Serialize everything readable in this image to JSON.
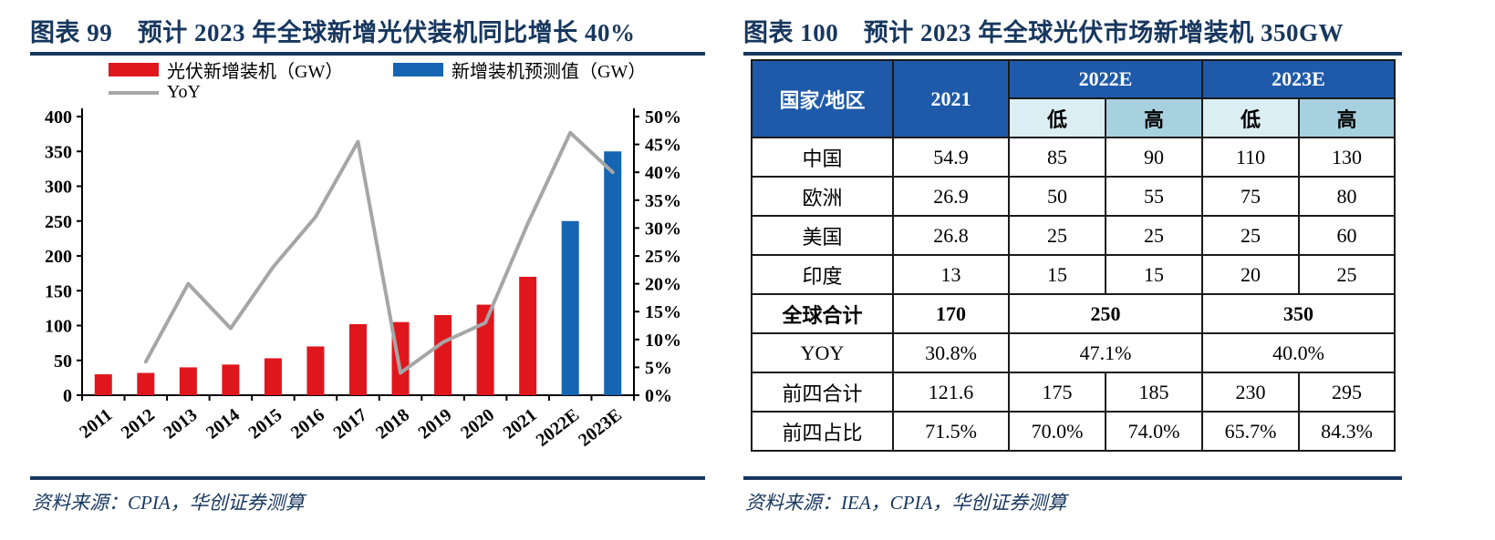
{
  "page": {
    "accent_navy": "#17375e",
    "background": "#ffffff"
  },
  "left_panel": {
    "title": "图表 99　预计 2023 年全球新增光伏装机同比增长 40%",
    "source": "资料来源：CPIA，华创证券测算"
  },
  "right_panel": {
    "title": "图表 100　预计 2023 年全球光伏市场新增装机 350GW",
    "source": "资料来源：IEA，CPIA，华创证券测算"
  },
  "chart_data": [
    {
      "type": "bar",
      "title": "图表 99　预计 2023 年全球新增光伏装机同比增长 40%",
      "categories": [
        "2011",
        "2012",
        "2013",
        "2014",
        "2015",
        "2016",
        "2017",
        "2018",
        "2019",
        "2020",
        "2021",
        "2022E",
        "2023E"
      ],
      "series": [
        {
          "name": "光伏新增装机（GW）",
          "kind": "bar",
          "axis": "left",
          "color": "#e0161d",
          "values": [
            30,
            32,
            40,
            44,
            53,
            70,
            102,
            105,
            115,
            130,
            170,
            null,
            null
          ]
        },
        {
          "name": "新增装机预测值（GW）",
          "kind": "bar",
          "axis": "left",
          "color": "#1565b2",
          "values": [
            null,
            null,
            null,
            null,
            null,
            null,
            null,
            null,
            null,
            null,
            null,
            250,
            350
          ]
        },
        {
          "name": "YoY",
          "kind": "line",
          "axis": "right",
          "color": "#a6a6a6",
          "values": [
            null,
            6,
            20,
            12,
            23,
            32,
            45.5,
            4,
            9.5,
            13,
            30.8,
            47.1,
            40
          ]
        }
      ],
      "left_axis": {
        "min": 0,
        "max": 400,
        "step": 50,
        "suffix": ""
      },
      "right_axis": {
        "min": 0,
        "max": 50,
        "step": 5,
        "suffix": "%"
      },
      "grid": false,
      "legend_position": "top",
      "source": "资料来源：CPIA，华创证券测算"
    },
    {
      "type": "table",
      "title": "图表 100　预计 2023 年全球光伏市场新增装机 350GW",
      "header": {
        "col1": "国家/地区",
        "col2": "2021",
        "group1": "2022E",
        "group2": "2023E",
        "low": "低",
        "high": "高"
      },
      "rows": [
        {
          "label": "中国",
          "bold": false,
          "cells": [
            {
              "text": "54.9"
            },
            {
              "text": "85"
            },
            {
              "text": "90"
            },
            {
              "text": "110"
            },
            {
              "text": "130"
            }
          ]
        },
        {
          "label": "欧洲",
          "bold": false,
          "cells": [
            {
              "text": "26.9"
            },
            {
              "text": "50"
            },
            {
              "text": "55"
            },
            {
              "text": "75"
            },
            {
              "text": "80"
            }
          ]
        },
        {
          "label": "美国",
          "bold": false,
          "cells": [
            {
              "text": "26.8"
            },
            {
              "text": "25"
            },
            {
              "text": "25"
            },
            {
              "text": "25"
            },
            {
              "text": "60"
            }
          ]
        },
        {
          "label": "印度",
          "bold": false,
          "cells": [
            {
              "text": "13"
            },
            {
              "text": "15"
            },
            {
              "text": "15"
            },
            {
              "text": "20"
            },
            {
              "text": "25"
            }
          ]
        },
        {
          "label": "全球合计",
          "bold": true,
          "cells": [
            {
              "text": "170"
            },
            {
              "text": "250",
              "colspan": 2
            },
            {
              "text": "350",
              "colspan": 2
            }
          ]
        },
        {
          "label": "YOY",
          "bold": false,
          "cells": [
            {
              "text": "30.8%"
            },
            {
              "text": "47.1%",
              "colspan": 2
            },
            {
              "text": "40.0%",
              "colspan": 2
            }
          ]
        },
        {
          "label": "前四合计",
          "bold": false,
          "cells": [
            {
              "text": "121.6"
            },
            {
              "text": "175"
            },
            {
              "text": "185"
            },
            {
              "text": "230"
            },
            {
              "text": "295"
            }
          ]
        },
        {
          "label": "前四占比",
          "bold": false,
          "cells": [
            {
              "text": "71.5%"
            },
            {
              "text": "70.0%"
            },
            {
              "text": "74.0%"
            },
            {
              "text": "65.7%"
            },
            {
              "text": "84.3%"
            }
          ]
        }
      ],
      "colors": {
        "header_bg": "#1e5aa9",
        "low_bg": "#daeef3",
        "high_bg": "#a7d1de",
        "border": "#1a1a1a"
      },
      "source": "资料来源：IEA，CPIA，华创证券测算"
    }
  ]
}
